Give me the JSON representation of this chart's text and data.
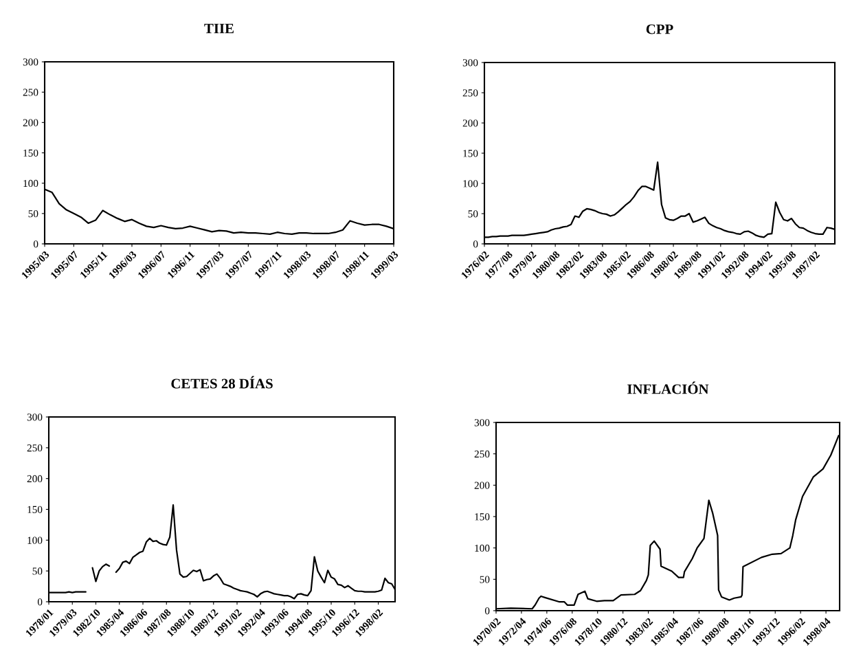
{
  "chart_data": [
    {
      "type": "line",
      "title": "TIIE",
      "ylim": [
        0,
        300
      ],
      "yticks": [
        0,
        50,
        100,
        150,
        200,
        250,
        300
      ],
      "categories": [
        "1995/03",
        null,
        null,
        null,
        "1995/07",
        null,
        null,
        null,
        "1995/11",
        null,
        null,
        null,
        "1996/03",
        null,
        null,
        null,
        "1996/07",
        null,
        null,
        null,
        "1996/11",
        null,
        null,
        null,
        "1997/03",
        null,
        null,
        null,
        "1997/07",
        null,
        null,
        null,
        "1997/11",
        null,
        null,
        null,
        "1998/03",
        null,
        null,
        null,
        "1998/07",
        null,
        null,
        null,
        "1998/11",
        null,
        null,
        null,
        "1999/03"
      ],
      "series": [
        {
          "color": "#000000",
          "values": [
            90,
            85,
            66,
            56,
            50,
            44,
            34,
            39,
            55,
            48,
            42,
            37,
            40,
            34,
            29,
            27,
            30,
            27,
            25,
            26,
            29,
            26,
            23,
            20,
            22,
            21,
            18,
            19,
            18,
            18,
            17,
            16,
            19,
            17,
            16,
            18,
            18,
            17,
            17,
            17,
            19,
            23,
            38,
            34,
            31,
            32,
            32,
            29,
            25
          ]
        }
      ]
    },
    {
      "type": "line",
      "title": "CPP",
      "ylim": [
        0,
        300
      ],
      "yticks": [
        0,
        50,
        100,
        150,
        200,
        250,
        300
      ],
      "categories": [
        "1976/02",
        null,
        null,
        null,
        null,
        null,
        "1977/08",
        null,
        null,
        null,
        null,
        null,
        "1979/02",
        null,
        null,
        null,
        null,
        null,
        "1980/08",
        null,
        null,
        null,
        null,
        null,
        "1982/02",
        null,
        null,
        null,
        null,
        null,
        "1983/08",
        null,
        null,
        null,
        null,
        null,
        "1985/02",
        null,
        null,
        null,
        null,
        null,
        "1986/08",
        null,
        null,
        null,
        null,
        null,
        "1988/02",
        null,
        null,
        null,
        null,
        null,
        "1989/08",
        null,
        null,
        null,
        null,
        null,
        "1991/02",
        null,
        null,
        null,
        null,
        null,
        "1992/08",
        null,
        null,
        null,
        null,
        null,
        "1994/02",
        null,
        null,
        null,
        null,
        null,
        "1995/08",
        null,
        null,
        null,
        null,
        null,
        "1997/02",
        null,
        null,
        null,
        null,
        null
      ],
      "series": [
        {
          "color": "#000000",
          "values": [
            11,
            11,
            12,
            12,
            13,
            13,
            13,
            14,
            14,
            14,
            14,
            15,
            16,
            17,
            18,
            19,
            20,
            23,
            25,
            26,
            28,
            29,
            32,
            46,
            44,
            54,
            58,
            57,
            55,
            52,
            50,
            49,
            46,
            48,
            53,
            59,
            65,
            70,
            78,
            88,
            95,
            95,
            92,
            89,
            135,
            65,
            43,
            40,
            39,
            42,
            46,
            46,
            50,
            36,
            38,
            41,
            44,
            34,
            30,
            27,
            25,
            22,
            20,
            19,
            17,
            16,
            20,
            21,
            18,
            14,
            12,
            11,
            16,
            17,
            69,
            52,
            40,
            38,
            42,
            33,
            27,
            26,
            22,
            19,
            17,
            16,
            16,
            27,
            26,
            24
          ]
        }
      ]
    },
    {
      "type": "line",
      "title": "CETES 28 DÍAS",
      "ylim": [
        0,
        300
      ],
      "yticks": [
        0,
        50,
        100,
        150,
        200,
        250,
        300
      ],
      "categories": [
        "1978/01",
        null,
        null,
        null,
        null,
        null,
        null,
        "1979/03",
        null,
        null,
        null,
        null,
        null,
        null,
        "1982/10",
        null,
        null,
        null,
        null,
        null,
        null,
        "1985/04",
        null,
        null,
        null,
        null,
        null,
        null,
        "1986/06",
        null,
        null,
        null,
        null,
        null,
        null,
        "1987/08",
        null,
        null,
        null,
        null,
        null,
        null,
        "1988/10",
        null,
        null,
        null,
        null,
        null,
        null,
        "1989/12",
        null,
        null,
        null,
        null,
        null,
        null,
        "1991/02",
        null,
        null,
        null,
        null,
        null,
        null,
        "1992/04",
        null,
        null,
        null,
        null,
        null,
        null,
        "1993/06",
        null,
        null,
        null,
        null,
        null,
        null,
        "1994/08",
        null,
        null,
        null,
        null,
        null,
        null,
        "1995/10",
        null,
        null,
        null,
        null,
        null,
        null,
        "1996/12",
        null,
        null,
        null,
        null,
        null,
        null,
        "1998/02",
        null,
        null,
        null,
        null,
        null
      ],
      "series": [
        {
          "color": "#000000",
          "values": [
            15,
            15,
            15,
            15,
            15,
            15,
            16,
            15,
            16,
            16,
            16,
            16,
            null,
            55,
            33,
            50,
            57,
            61,
            58,
            null,
            48,
            54,
            64,
            66,
            62,
            72,
            76,
            80,
            82,
            97,
            103,
            98,
            99,
            95,
            93,
            92,
            105,
            157,
            84,
            45,
            40,
            41,
            46,
            51,
            49,
            52,
            34,
            36,
            37,
            42,
            45,
            38,
            29,
            27,
            25,
            22,
            20,
            18,
            17,
            16,
            14,
            12,
            8,
            13,
            16,
            17,
            15,
            13,
            12,
            11,
            10,
            10,
            8,
            5,
            12,
            13,
            11,
            10,
            18,
            73,
            50,
            40,
            31,
            51,
            40,
            37,
            28,
            27,
            23,
            26,
            22,
            18,
            17,
            17,
            16,
            16,
            16,
            16,
            17,
            19,
            38,
            31,
            29,
            20
          ]
        }
      ]
    },
    {
      "type": "line",
      "title": "INFLACIÓN",
      "ylim": [
        0,
        300
      ],
      "yticks": [
        0,
        50,
        100,
        150,
        200,
        250,
        300
      ],
      "xlim": [
        "1970-02",
        "1999-06"
      ],
      "xticks": [
        {
          "value": "1970-02",
          "label": "1970/02"
        },
        {
          "value": "1972-04",
          "label": "1972/04"
        },
        {
          "value": "1974-06",
          "label": "1974/06"
        },
        {
          "value": "1976-08",
          "label": "1976/08"
        },
        {
          "value": "1978-10",
          "label": "1978/10"
        },
        {
          "value": "1980-12",
          "label": "1980/12"
        },
        {
          "value": "1983-02",
          "label": "1983/02"
        },
        {
          "value": "1985-04",
          "label": "1985/04"
        },
        {
          "value": "1987-06",
          "label": "1987/06"
        },
        {
          "value": "1989-08",
          "label": "1989/08"
        },
        {
          "value": "1991-10",
          "label": "1991/10"
        },
        {
          "value": "1993-12",
          "label": "1993/12"
        },
        {
          "value": "1996-02",
          "label": "1996/02"
        },
        {
          "value": "1998-04",
          "label": "1998/04"
        }
      ],
      "x": [
        "1970-02",
        "1971-05",
        "1973-03",
        "1973-06",
        "1973-10",
        "1973-12",
        "1974-04",
        "1975-07",
        "1975-12",
        "1976-03",
        "1976-10",
        "1977-02",
        "1977-09",
        "1977-12",
        "1978-09",
        "1979-05",
        "1980-02",
        "1980-10",
        "1981-12",
        "1982-06",
        "1982-12",
        "1983-02",
        "1983-04",
        "1983-08",
        "1984-02",
        "1984-03",
        "1985-02",
        "1985-09",
        "1986-02",
        "1986-03",
        "1986-11",
        "1987-04",
        "1987-11",
        "1988-04",
        "1988-08",
        "1989-01",
        "1989-02",
        "1989-05",
        "1990-01",
        "1990-06",
        "1991-01",
        "1991-02",
        "1991-03",
        "1992-10",
        "1993-09",
        "1994-06",
        "1995-03",
        "1995-06",
        "1995-09",
        "1996-04",
        "1997-03",
        "1998-01",
        "1998-09",
        "1999-05"
      ],
      "series": [
        {
          "color": "#000000",
          "values": [
            3,
            4,
            3,
            9,
            20,
            23,
            21,
            14,
            14,
            9,
            9,
            26,
            31,
            19,
            15,
            16,
            16,
            25,
            26,
            32,
            48,
            57,
            104,
            111,
            98,
            71,
            63,
            53,
            53,
            62,
            83,
            100,
            115,
            176,
            155,
            120,
            33,
            22,
            17,
            20,
            22,
            25,
            70,
            85,
            90,
            91,
            100,
            120,
            145,
            182,
            213,
            226,
            248,
            279
          ]
        }
      ]
    }
  ]
}
